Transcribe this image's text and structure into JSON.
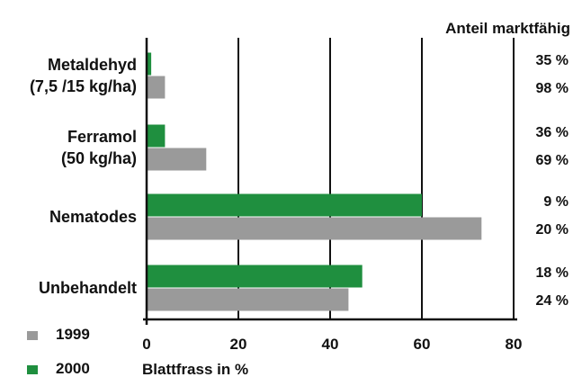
{
  "chart_data": {
    "type": "bar",
    "orientation": "horizontal",
    "categories": [
      [
        "Metaldehyd",
        "(7,5 /15 kg/ha)"
      ],
      [
        "Ferramol",
        "(50 kg/ha)"
      ],
      [
        "Nematodes"
      ],
      [
        "Unbehandelt"
      ]
    ],
    "series": [
      {
        "name": "2000",
        "color": "#1f8f3f",
        "values": [
          1,
          4,
          60,
          47
        ]
      },
      {
        "name": "1999",
        "color": "#9a9a9a",
        "values": [
          4,
          13,
          73,
          44
        ]
      }
    ],
    "xlabel": "Blattfrass in %",
    "xlim": [
      0,
      80
    ],
    "xticks": [
      0,
      20,
      40,
      60,
      80
    ],
    "grid": true,
    "legend_position": "bottom-left",
    "right_column_title": "Anteil marktfähig",
    "right_column_values": [
      [
        "35 %",
        "98 %"
      ],
      [
        "36 %",
        "69 %"
      ],
      [
        "9 %",
        "20 %"
      ],
      [
        "18 %",
        "24 %"
      ]
    ]
  }
}
